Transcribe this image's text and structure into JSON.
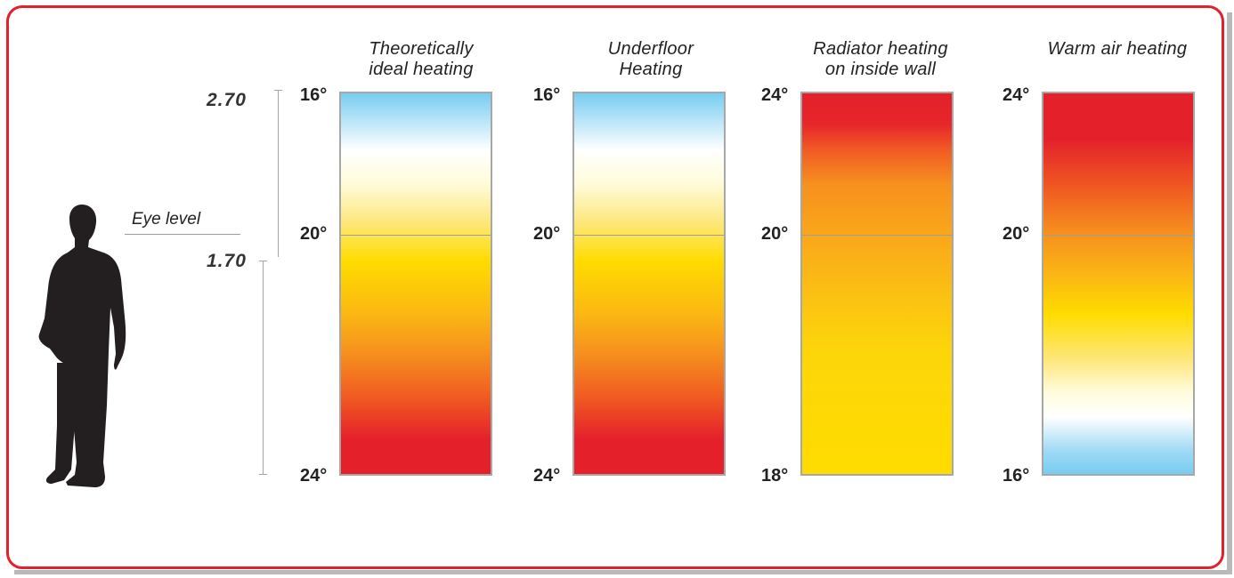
{
  "measure": {
    "top_label": "2.70",
    "eye_label": "1.70",
    "eye_level_label": "Eye level"
  },
  "panels": [
    {
      "title_lines": [
        "Theoretically",
        "ideal heating"
      ],
      "temp_top": "16°",
      "temp_mid": "20°",
      "temp_bottom": "24°",
      "gradient": [
        [
          "#77cdf1",
          0
        ],
        [
          "#ffffff",
          15
        ],
        [
          "#fffbd8",
          24
        ],
        [
          "#fde77a",
          34
        ],
        [
          "#ffdc00",
          44
        ],
        [
          "#fbb713",
          58
        ],
        [
          "#f6911e",
          68
        ],
        [
          "#f05a22",
          80
        ],
        [
          "#e4202b",
          91
        ],
        [
          "#e4202b",
          100
        ]
      ]
    },
    {
      "title_lines": [
        "Underfloor",
        "Heating"
      ],
      "temp_top": "16°",
      "temp_mid": "20°",
      "temp_bottom": "24°",
      "gradient": [
        [
          "#77cdf1",
          0
        ],
        [
          "#ffffff",
          15
        ],
        [
          "#fffbd8",
          24
        ],
        [
          "#fde77a",
          34
        ],
        [
          "#ffdc00",
          44
        ],
        [
          "#fbb713",
          58
        ],
        [
          "#f6911e",
          68
        ],
        [
          "#f05a22",
          80
        ],
        [
          "#e4202b",
          91
        ],
        [
          "#e4202b",
          100
        ]
      ]
    },
    {
      "title_lines": [
        "Radiator heating",
        "on inside wall"
      ],
      "temp_top": "24°",
      "temp_mid": "20°",
      "temp_bottom": "18°",
      "gradient": [
        [
          "#e4202b",
          0
        ],
        [
          "#e6262a",
          8
        ],
        [
          "#f15c24",
          15
        ],
        [
          "#f6911e",
          24
        ],
        [
          "#f9a51a",
          36
        ],
        [
          "#fbbf14",
          52
        ],
        [
          "#fdd60a",
          68
        ],
        [
          "#ffdc00",
          100
        ]
      ]
    },
    {
      "title_lines": [
        "Warm air heating"
      ],
      "temp_top": "24°",
      "temp_mid": "20°",
      "temp_bottom": "16°",
      "gradient": [
        [
          "#e4202b",
          0
        ],
        [
          "#e4202b",
          12
        ],
        [
          "#f05a22",
          25
        ],
        [
          "#f6911e",
          37
        ],
        [
          "#fbb713",
          48
        ],
        [
          "#ffdc00",
          58
        ],
        [
          "#fde77a",
          70
        ],
        [
          "#fffbd8",
          78
        ],
        [
          "#ffffff",
          85
        ],
        [
          "#9fdaf4",
          94
        ],
        [
          "#77cdf1",
          100
        ]
      ]
    }
  ]
}
